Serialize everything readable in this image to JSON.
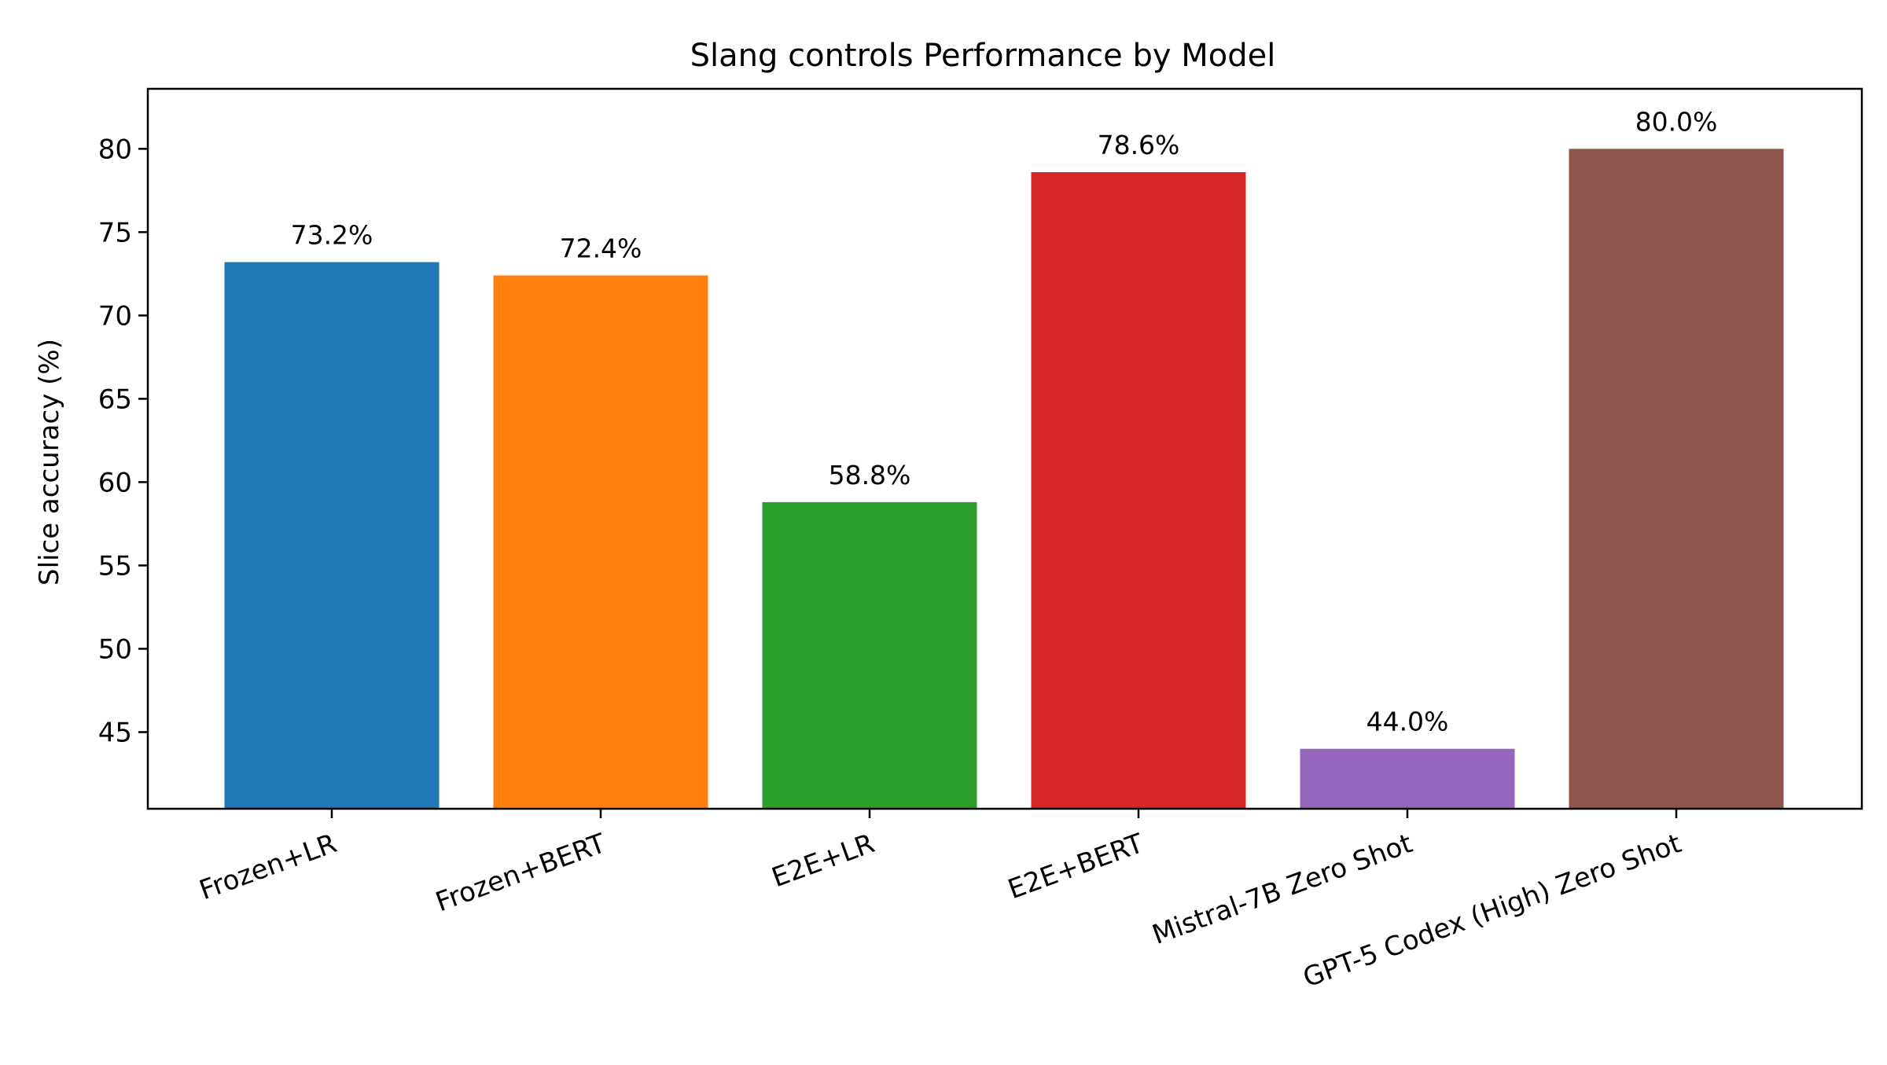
{
  "chart_data": {
    "type": "bar",
    "title": "Slang controls Performance by Model",
    "xlabel": "",
    "ylabel": "Slice accuracy (%)",
    "ylim": [
      40.4,
      83.6
    ],
    "yticks": [
      45,
      50,
      55,
      60,
      65,
      70,
      75,
      80
    ],
    "categories": [
      "Frozen+LR",
      "Frozen+BERT",
      "E2E+LR",
      "E2E+BERT",
      "Mistral-7B Zero Shot",
      "GPT-5 Codex (High) Zero Shot"
    ],
    "values": [
      73.2,
      72.4,
      58.8,
      78.6,
      44.0,
      80.0
    ],
    "data_labels": [
      "73.2%",
      "72.4%",
      "58.8%",
      "78.6%",
      "44.0%",
      "80.0%"
    ],
    "colors": [
      "#1f77b4",
      "#ff7f0e",
      "#2ca02c",
      "#d62728",
      "#9467bd",
      "#8c564b"
    ],
    "grid": false,
    "legend": "none",
    "xtick_rotation": 20
  }
}
